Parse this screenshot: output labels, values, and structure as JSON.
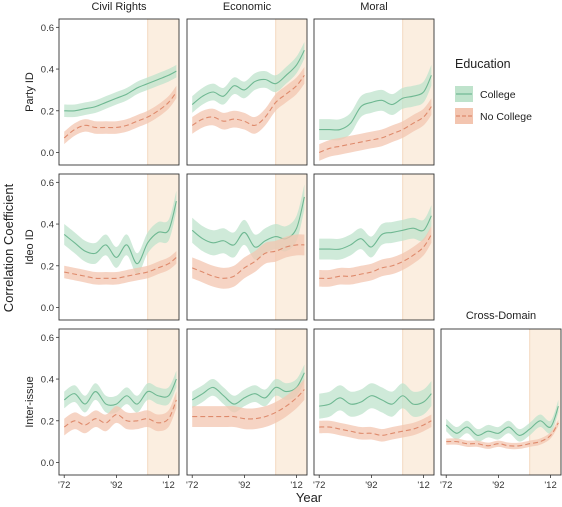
{
  "figure": {
    "ylabel": "Correlation Coefficient",
    "xlabel": "Year",
    "legend_title": "Education",
    "legend_placement": "right",
    "colors": {
      "college_line": "#6fb892",
      "college_band": "#bfe3cc",
      "nocollege_line": "#de8a6c",
      "nocollege_band": "#f3c5b0",
      "shade": "#fbeee0",
      "panel_border": "#333333",
      "text": "#222222"
    }
  },
  "chart_data": {
    "type": "line",
    "grid": false,
    "x_ticks": [
      {
        "value": 1972,
        "label": "'72"
      },
      {
        "value": 1992,
        "label": "'92"
      },
      {
        "value": 2012,
        "label": "'12"
      }
    ],
    "y_ticks": [
      0.0,
      0.2,
      0.4,
      0.6
    ],
    "xlim": [
      1970,
      2016
    ],
    "ylim": [
      -0.06,
      0.64
    ],
    "shaded_period": [
      2004,
      2016
    ],
    "columns": [
      "Civil Rights",
      "Economic",
      "Moral"
    ],
    "rows": [
      "Party ID",
      "Ideo ID",
      "Inter-issue"
    ],
    "extra_panel_title": "Cross-Domain",
    "series_names": [
      "College",
      "No College"
    ],
    "x": [
      1972,
      1976,
      1980,
      1984,
      1988,
      1992,
      1996,
      2000,
      2004,
      2008,
      2012,
      2015
    ],
    "panels": [
      {
        "row": "Party ID",
        "column": "Civil Rights",
        "series": [
          {
            "name": "College",
            "values": [
              0.2,
              0.2,
              0.21,
              0.22,
              0.24,
              0.26,
              0.28,
              0.31,
              0.33,
              0.35,
              0.37,
              0.39
            ],
            "band": 0.03
          },
          {
            "name": "No College",
            "values": [
              0.07,
              0.11,
              0.13,
              0.12,
              0.12,
              0.12,
              0.13,
              0.15,
              0.17,
              0.2,
              0.24,
              0.29
            ],
            "band": 0.03
          }
        ]
      },
      {
        "row": "Party ID",
        "column": "Economic",
        "series": [
          {
            "name": "College",
            "values": [
              0.23,
              0.27,
              0.29,
              0.27,
              0.32,
              0.3,
              0.34,
              0.35,
              0.33,
              0.37,
              0.42,
              0.49
            ],
            "band": 0.04
          },
          {
            "name": "No College",
            "values": [
              0.13,
              0.16,
              0.17,
              0.15,
              0.16,
              0.15,
              0.13,
              0.17,
              0.24,
              0.28,
              0.32,
              0.37
            ],
            "band": 0.04
          }
        ]
      },
      {
        "row": "Party ID",
        "column": "Moral",
        "series": [
          {
            "name": "College",
            "values": [
              0.11,
              0.11,
              0.11,
              0.14,
              0.22,
              0.24,
              0.25,
              0.23,
              0.26,
              0.27,
              0.29,
              0.37
            ],
            "band": 0.05
          },
          {
            "name": "No College",
            "values": [
              0.0,
              0.02,
              0.03,
              0.04,
              0.05,
              0.06,
              0.07,
              0.09,
              0.11,
              0.14,
              0.17,
              0.22
            ],
            "band": 0.04
          }
        ]
      },
      {
        "row": "Ideo ID",
        "column": "Civil Rights",
        "series": [
          {
            "name": "College",
            "values": [
              0.35,
              0.31,
              0.27,
              0.26,
              0.3,
              0.24,
              0.3,
              0.21,
              0.31,
              0.36,
              0.37,
              0.51
            ],
            "band": 0.05
          },
          {
            "name": "No College",
            "values": [
              0.17,
              0.16,
              0.15,
              0.14,
              0.14,
              0.14,
              0.15,
              0.16,
              0.17,
              0.19,
              0.21,
              0.24
            ],
            "band": 0.03
          }
        ]
      },
      {
        "row": "Ideo ID",
        "column": "Economic",
        "series": [
          {
            "name": "College",
            "values": [
              0.37,
              0.33,
              0.31,
              0.32,
              0.3,
              0.36,
              0.29,
              0.32,
              0.34,
              0.33,
              0.38,
              0.53
            ],
            "band": 0.06
          },
          {
            "name": "No College",
            "values": [
              0.19,
              0.17,
              0.15,
              0.14,
              0.15,
              0.19,
              0.22,
              0.26,
              0.27,
              0.29,
              0.3,
              0.3
            ],
            "band": 0.05
          }
        ]
      },
      {
        "row": "Ideo ID",
        "column": "Moral",
        "series": [
          {
            "name": "College",
            "values": [
              0.28,
              0.28,
              0.28,
              0.3,
              0.33,
              0.29,
              0.35,
              0.36,
              0.37,
              0.38,
              0.37,
              0.44
            ],
            "band": 0.05
          },
          {
            "name": "No College",
            "values": [
              0.14,
              0.14,
              0.15,
              0.15,
              0.16,
              0.17,
              0.19,
              0.2,
              0.22,
              0.25,
              0.29,
              0.35
            ],
            "band": 0.04
          }
        ]
      },
      {
        "row": "Inter-issue",
        "column": "Civil Rights",
        "series": [
          {
            "name": "College",
            "values": [
              0.3,
              0.33,
              0.28,
              0.34,
              0.28,
              0.28,
              0.32,
              0.28,
              0.34,
              0.32,
              0.32,
              0.4
            ],
            "band": 0.04
          },
          {
            "name": "No College",
            "values": [
              0.17,
              0.2,
              0.18,
              0.21,
              0.19,
              0.23,
              0.2,
              0.2,
              0.21,
              0.19,
              0.21,
              0.3
            ],
            "band": 0.04
          }
        ]
      },
      {
        "row": "Inter-issue",
        "column": "Economic",
        "series": [
          {
            "name": "College",
            "values": [
              0.3,
              0.33,
              0.36,
              0.32,
              0.28,
              0.31,
              0.33,
              0.31,
              0.36,
              0.34,
              0.36,
              0.43
            ],
            "band": 0.04
          },
          {
            "name": "No College",
            "values": [
              0.22,
              0.22,
              0.22,
              0.22,
              0.22,
              0.21,
              0.21,
              0.22,
              0.24,
              0.27,
              0.31,
              0.35
            ],
            "band": 0.05
          }
        ]
      },
      {
        "row": "Inter-issue",
        "column": "Moral",
        "series": [
          {
            "name": "College",
            "values": [
              0.27,
              0.28,
              0.31,
              0.28,
              0.29,
              0.32,
              0.3,
              0.28,
              0.32,
              0.28,
              0.29,
              0.33
            ],
            "band": 0.06
          },
          {
            "name": "No College",
            "values": [
              0.17,
              0.17,
              0.16,
              0.15,
              0.14,
              0.14,
              0.13,
              0.14,
              0.15,
              0.16,
              0.18,
              0.2
            ],
            "band": 0.03
          }
        ]
      },
      {
        "row": "Inter-issue",
        "column": "Cross-Domain",
        "series": [
          {
            "name": "College",
            "values": [
              0.18,
              0.14,
              0.17,
              0.13,
              0.15,
              0.14,
              0.17,
              0.13,
              0.16,
              0.2,
              0.17,
              0.27
            ],
            "band": 0.03
          },
          {
            "name": "No College",
            "values": [
              0.1,
              0.1,
              0.09,
              0.09,
              0.08,
              0.09,
              0.08,
              0.08,
              0.09,
              0.1,
              0.13,
              0.19
            ],
            "band": 0.015
          }
        ]
      }
    ]
  }
}
